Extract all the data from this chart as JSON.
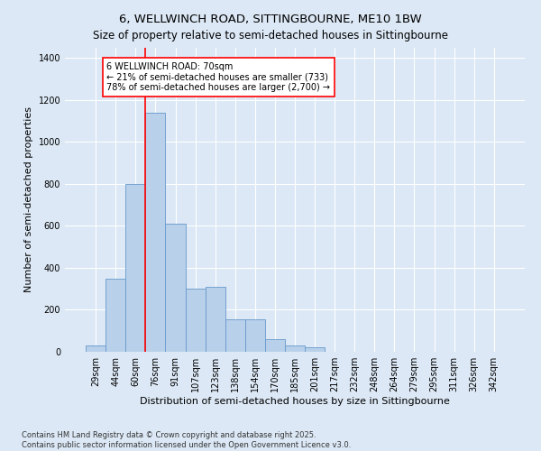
{
  "title": "6, WELLWINCH ROAD, SITTINGBOURNE, ME10 1BW",
  "subtitle": "Size of property relative to semi-detached houses in Sittingbourne",
  "xlabel": "Distribution of semi-detached houses by size in Sittingbourne",
  "ylabel": "Number of semi-detached properties",
  "categories": [
    "29sqm",
    "44sqm",
    "60sqm",
    "76sqm",
    "91sqm",
    "107sqm",
    "123sqm",
    "138sqm",
    "154sqm",
    "170sqm",
    "185sqm",
    "201sqm",
    "217sqm",
    "232sqm",
    "248sqm",
    "264sqm",
    "279sqm",
    "295sqm",
    "311sqm",
    "326sqm",
    "342sqm"
  ],
  "values": [
    30,
    350,
    800,
    1140,
    610,
    300,
    310,
    155,
    155,
    60,
    30,
    20,
    0,
    0,
    0,
    0,
    0,
    0,
    0,
    0,
    0
  ],
  "bar_color": "#b8d0ea",
  "bar_edge_color": "#6699cc",
  "vline_x": 2.5,
  "vline_color": "red",
  "annotation_text": "6 WELLWINCH ROAD: 70sqm\n← 21% of semi-detached houses are smaller (733)\n78% of semi-detached houses are larger (2,700) →",
  "annotation_box_color": "white",
  "annotation_box_edge_color": "red",
  "ylim": [
    0,
    1450
  ],
  "yticks": [
    0,
    200,
    400,
    600,
    800,
    1000,
    1200,
    1400
  ],
  "footnote": "Contains HM Land Registry data © Crown copyright and database right 2025.\nContains public sector information licensed under the Open Government Licence v3.0.",
  "background_color": "#dce8f5",
  "plot_bg_color": "#dce8f5",
  "title_fontsize": 9.5,
  "subtitle_fontsize": 8.5,
  "tick_fontsize": 7,
  "label_fontsize": 8,
  "footnote_fontsize": 6,
  "annot_fontsize": 7
}
